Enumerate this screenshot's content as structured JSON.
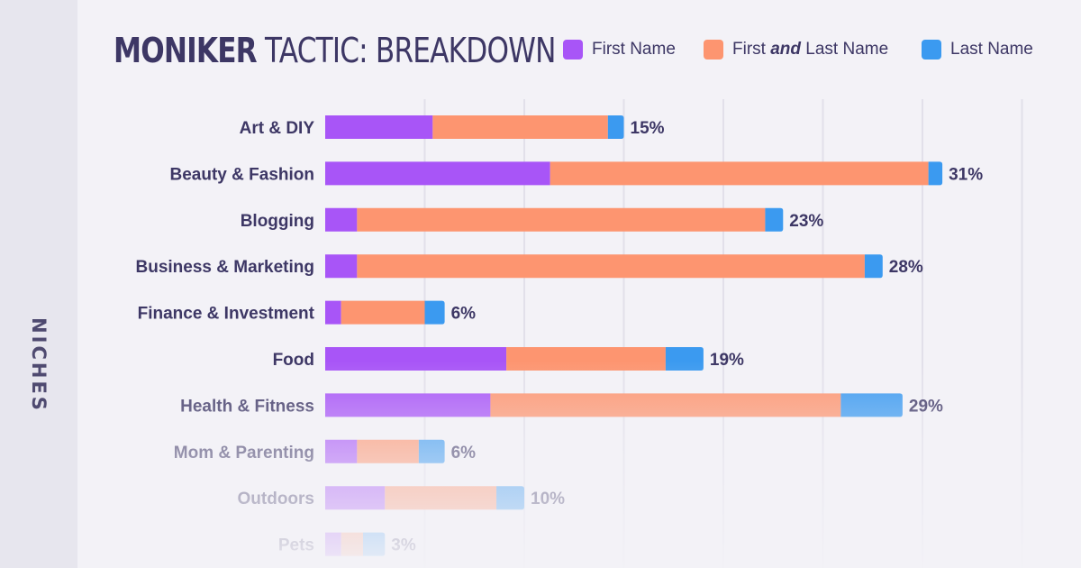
{
  "header": {
    "title_bold": "MONIKER",
    "title_rest": " TACTIC: BREAKDOWN"
  },
  "axis": {
    "y_label": "NICHES"
  },
  "legend": [
    {
      "label": "First Name",
      "color": "#a855f7"
    },
    {
      "label_pre": "First ",
      "label_em": "and",
      "label_post": " Last Name",
      "color": "#fd9570"
    },
    {
      "label": "Last Name",
      "color": "#3b9af0"
    }
  ],
  "chart_data": {
    "type": "bar",
    "orientation": "horizontal",
    "stacked": true,
    "categories": [
      "Art & DIY",
      "Beauty & Fashion",
      "Blogging",
      "Business & Marketing",
      "Finance & Investment",
      "Food",
      "Health & Fitness",
      "Mom & Parenting",
      "Outdoors",
      "Pets"
    ],
    "series": [
      {
        "name": "First Name",
        "color": "#a855f7",
        "values": [
          5.4,
          11.3,
          1.6,
          1.6,
          0.8,
          9.1,
          8.3,
          1.6,
          3.0,
          0.8
        ]
      },
      {
        "name": "First and Last Name",
        "color": "#fd9570",
        "values": [
          8.8,
          19.0,
          20.5,
          25.5,
          4.2,
          8.0,
          17.6,
          3.1,
          5.6,
          1.1
        ]
      },
      {
        "name": "Last Name",
        "color": "#3b9af0",
        "values": [
          0.8,
          0.7,
          0.9,
          0.9,
          1.0,
          1.9,
          3.1,
          1.3,
          1.4,
          1.1
        ]
      }
    ],
    "totals": [
      15,
      31,
      23,
      28,
      6,
      19,
      29,
      6,
      10,
      3
    ],
    "total_labels": [
      "15%",
      "31%",
      "23%",
      "28%",
      "6%",
      "19%",
      "29%",
      "6%",
      "10%",
      "3%"
    ],
    "xlim": [
      0,
      35
    ],
    "grid": true,
    "legend_position": "top-right"
  }
}
